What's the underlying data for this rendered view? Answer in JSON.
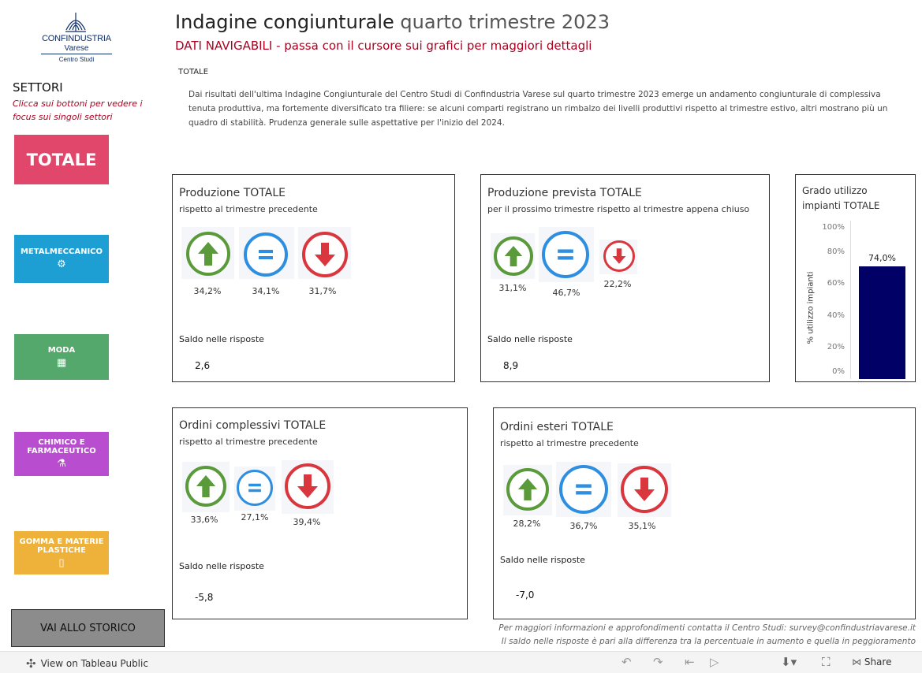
{
  "logo": {
    "name": "CONFINDUSTRIA",
    "sub": "Varese",
    "dept": "Centro Studi"
  },
  "header": {
    "title_bold": "Indagine congiunturale",
    "title_light": "quarto trimestre 2023",
    "subtitle": "DATI NAVIGABILI - passa con il cursore sui grafici per maggiori dettagli"
  },
  "sidebar": {
    "heading": "SETTORI",
    "hint": "Clicca sui bottoni per vedere i focus sui singoli settori",
    "buttons": [
      {
        "label": "TOTALE",
        "color": "#e0476a"
      },
      {
        "label": "METALMECCANICO",
        "color": "#1e9fd4",
        "icon": "gear-icon"
      },
      {
        "label": "MODA",
        "color": "#55a86b",
        "icon": "fabric-icon"
      },
      {
        "label": "CHIMICO E FARMACEUTICO",
        "color": "#b94dd0",
        "icon": "flask-icon"
      },
      {
        "label": "GOMMA E MATERIE PLASTICHE",
        "color": "#eeb13a",
        "icon": "bottle-icon"
      }
    ],
    "storico": "VAI ALLO STORICO"
  },
  "intro": {
    "label": "TOTALE",
    "text": "Dai risultati dell'ultima Indagine Congiunturale del Centro Studi di Confindustria Varese sul quarto trimestre 2023 emerge un andamento congiunturale di complessiva tenuta produttiva, ma fortemente diversificato tra filiere: se alcuni comparti registrano un rimbalzo dei livelli produttivi rispetto al trimestre estivo, altri mostrano più un quadro di stabilità. Prudenza generale sulle aspettative per l'inizio del 2024."
  },
  "colors": {
    "up": "#5a9a3a",
    "equal": "#2e8fe0",
    "down": "#d9363e",
    "bar": "#000066"
  },
  "cards": {
    "produzione": {
      "title": "Produzione TOTALE",
      "subtitle": "rispetto al trimestre precedente",
      "up": "34,2%",
      "equal": "34,1%",
      "down": "31,7%",
      "saldo_label": "Saldo nelle risposte",
      "saldo": "2,6"
    },
    "prevista": {
      "title": "Produzione prevista  TOTALE",
      "subtitle": "per il prossimo trimestre rispetto al trimestre appena chiuso",
      "up": "31,1%",
      "equal": "46,7%",
      "down": "22,2%",
      "saldo_label": "Saldo nelle risposte",
      "saldo": "8,9"
    },
    "ordini": {
      "title": "Ordini complessivi TOTALE",
      "subtitle": "rispetto al trimestre precedente",
      "up": "33,6%",
      "equal": "27,1%",
      "down": "39,4%",
      "saldo_label": "Saldo nelle risposte",
      "saldo": "-5,8"
    },
    "esteri": {
      "title": "Ordini esteri TOTALE",
      "subtitle": "rispetto al trimestre precedente",
      "up": "28,2%",
      "equal": "36,7%",
      "down": "35,1%",
      "saldo_label": "Saldo nelle risposte",
      "saldo": "-7,0"
    }
  },
  "gauge": {
    "title_line1": "Grado utilizzo",
    "title_line2": "impianti TOTALE",
    "ylabel": "% utilizzo impianti",
    "ticks": [
      "100%",
      "80%",
      "60%",
      "40%",
      "20%",
      "0%"
    ],
    "value_label": "74,0%"
  },
  "chart_data": {
    "type": "bar",
    "categories": [
      ""
    ],
    "values": [
      74.0
    ],
    "title": "Grado utilizzo impianti TOTALE",
    "ylabel": "% utilizzo impianti",
    "ylim": [
      0,
      100
    ],
    "data_labels": [
      "74,0%"
    ]
  },
  "footer": {
    "line1": "Per maggiori informazioni e approfondimenti contatta il Centro Studi: survey@confindustriavarese.it",
    "line2": "Il saldo nelle risposte è pari alla differenza tra la percentuale in aumento e quella in peggioramento"
  },
  "toolbar": {
    "view": "View on Tableau Public",
    "share": "Share"
  }
}
